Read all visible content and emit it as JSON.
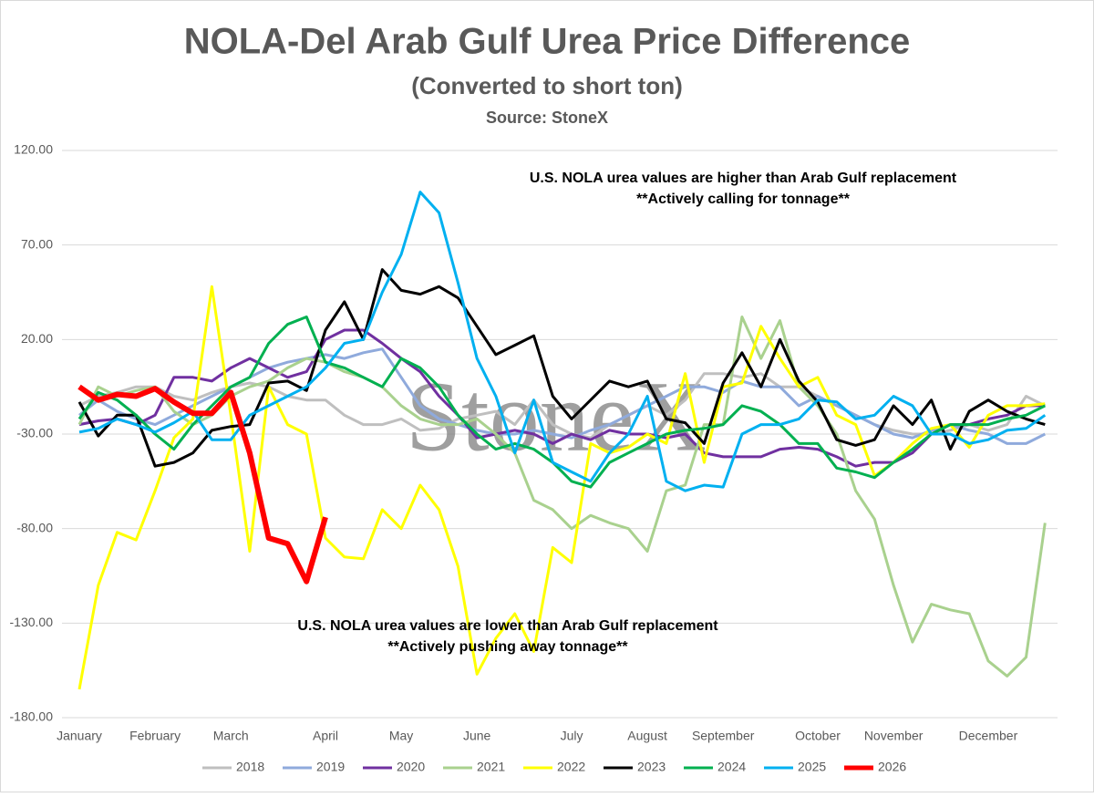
{
  "chart_data": {
    "type": "line",
    "title": "NOLA-Del Arab Gulf Urea Price Difference",
    "subtitle": "(Converted to short ton)",
    "source": "Source: StoneX",
    "watermark": "StoneX",
    "annotations": [
      "U.S. NOLA urea values are higher than Arab Gulf replacement",
      "**Actively calling for tonnage**",
      "U.S. NOLA urea values are lower than Arab Gulf replacement",
      "**Actively pushing away tonnage**"
    ],
    "categories": [
      "January",
      null,
      null,
      null,
      "February",
      null,
      null,
      null,
      "March",
      null,
      null,
      null,
      null,
      "April",
      null,
      null,
      null,
      "May",
      null,
      null,
      null,
      "June",
      null,
      null,
      null,
      null,
      "July",
      null,
      null,
      null,
      "August",
      null,
      null,
      null,
      "September",
      null,
      null,
      null,
      null,
      "October",
      null,
      null,
      null,
      "November",
      null,
      null,
      null,
      null,
      "December",
      null,
      null,
      null
    ],
    "ylim": [
      -180,
      120
    ],
    "yticks": [
      {
        "value": -180,
        "label": "-180.00"
      },
      {
        "value": -130,
        "label": "-130.00"
      },
      {
        "value": -80,
        "label": "-80.00"
      },
      {
        "value": -30,
        "label": "-30.00"
      },
      {
        "value": 20,
        "label": "20.00"
      },
      {
        "value": 70,
        "label": "70.00"
      },
      {
        "value": 120,
        "label": "120.00"
      }
    ],
    "grid": true,
    "legend": "bottom",
    "series": [
      {
        "name": "2018",
        "color": "#bfbfbf",
        "values": [
          -15,
          -10,
          -8,
          -5,
          -5,
          -10,
          -12,
          -8,
          -5,
          -3,
          -5,
          -10,
          -12,
          -12,
          -20,
          -25,
          -25,
          -22,
          -28,
          -27,
          -22,
          -20,
          -18,
          -25,
          -12,
          -25,
          -30,
          -32,
          -25,
          -20,
          -15,
          -20,
          -12,
          2,
          2,
          0,
          2,
          -5,
          -5,
          -10,
          -15,
          -20,
          -25,
          -28,
          -30,
          -30,
          -28,
          -25,
          -28,
          -25,
          -10,
          -15
        ]
      },
      {
        "name": "2019",
        "color": "#8faadc",
        "values": [
          -20,
          -12,
          -18,
          -22,
          -25,
          -20,
          -15,
          -10,
          -5,
          0,
          5,
          8,
          10,
          12,
          10,
          13,
          15,
          0,
          -15,
          -22,
          -25,
          -28,
          -30,
          -30,
          -28,
          -30,
          -32,
          -28,
          -25,
          -20,
          -15,
          -10,
          -5,
          -5,
          -8,
          -2,
          -5,
          -5,
          -15,
          -10,
          -15,
          -20,
          -25,
          -30,
          -32,
          -28,
          -25,
          -28,
          -30,
          -35,
          -35,
          -30
        ]
      },
      {
        "name": "2020",
        "color": "#7030a0",
        "values": [
          -25,
          -23,
          -22,
          -25,
          -20,
          0,
          0,
          -2,
          5,
          10,
          5,
          0,
          3,
          20,
          25,
          25,
          18,
          10,
          3,
          -10,
          -20,
          -32,
          -30,
          -28,
          -30,
          -35,
          -30,
          -33,
          -28,
          -30,
          -30,
          -32,
          -30,
          -40,
          -42,
          -42,
          -42,
          -38,
          -37,
          -38,
          -42,
          -47,
          -45,
          -45,
          -40,
          -30,
          -25,
          -25,
          -22,
          -20,
          -15,
          -15
        ]
      },
      {
        "name": "2021",
        "color": "#a9d18e",
        "values": [
          -25,
          -5,
          -10,
          -7,
          -5,
          -18,
          -25,
          -20,
          -10,
          -5,
          -2,
          5,
          10,
          8,
          3,
          0,
          -5,
          -15,
          -22,
          -25,
          -25,
          -22,
          -30,
          -40,
          -65,
          -70,
          -80,
          -73,
          -77,
          -80,
          -92,
          -60,
          -57,
          -25,
          -25,
          32,
          10,
          30,
          -5,
          -15,
          -30,
          -60,
          -75,
          -110,
          -140,
          -120,
          -123,
          -125,
          -150,
          -158,
          -148,
          -77
        ]
      },
      {
        "name": "2022",
        "color": "#ffff00",
        "values": [
          -165,
          -110,
          -82,
          -86,
          -60,
          -32,
          -22,
          48,
          -20,
          -92,
          -5,
          -25,
          -30,
          -85,
          -95,
          -96,
          -70,
          -80,
          -57,
          -70,
          -100,
          -157,
          -138,
          -125,
          -145,
          -90,
          -98,
          -35,
          -40,
          -37,
          -30,
          -35,
          2,
          -45,
          -5,
          -3,
          27,
          10,
          -5,
          0,
          -20,
          -25,
          -52,
          -45,
          -35,
          -27,
          -25,
          -37,
          -20,
          -15,
          -15,
          -14
        ]
      },
      {
        "name": "2023",
        "color": "#000000",
        "values": [
          -13,
          -31,
          -20,
          -20,
          -47,
          -45,
          -40,
          -28,
          -26,
          -25,
          -3,
          -2,
          -7,
          25,
          40,
          20,
          57,
          46,
          44,
          48,
          42,
          27,
          12,
          17,
          22,
          -10,
          -22,
          -12,
          -2,
          -5,
          -2,
          -22,
          -24,
          -35,
          -3,
          13,
          -5,
          20,
          -2,
          -13,
          -33,
          -36,
          -33,
          -15,
          -25,
          -12,
          -38,
          -18,
          -12,
          -18,
          -22,
          -25
        ]
      },
      {
        "name": "2024",
        "color": "#00b050",
        "values": [
          -22,
          -8,
          -12,
          -20,
          -30,
          -38,
          -25,
          -15,
          -5,
          0,
          18,
          28,
          32,
          8,
          5,
          0,
          -5,
          10,
          5,
          -5,
          -20,
          -30,
          -38,
          -35,
          -38,
          -45,
          -55,
          -58,
          -45,
          -40,
          -35,
          -30,
          -28,
          -27,
          -25,
          -15,
          -18,
          -25,
          -35,
          -35,
          -48,
          -50,
          -53,
          -45,
          -38,
          -30,
          -25,
          -25,
          -25,
          -22,
          -20,
          -15
        ]
      },
      {
        "name": "2025",
        "color": "#00b0f0",
        "values": [
          -29,
          -27,
          -22,
          -25,
          -29,
          -24,
          -18,
          -33,
          -33,
          -20,
          -15,
          -10,
          -5,
          5,
          18,
          20,
          45,
          65,
          98,
          87,
          50,
          10,
          -10,
          -40,
          -12,
          -45,
          -50,
          -55,
          -40,
          -30,
          -10,
          -55,
          -60,
          -57,
          -58,
          -30,
          -25,
          -25,
          -22,
          -12,
          -13,
          -22,
          -20,
          -10,
          -15,
          -30,
          -30,
          -35,
          -33,
          -28,
          -27,
          -20
        ]
      },
      {
        "name": "2026",
        "color": "#ff0000",
        "values": [
          -5,
          -12,
          -9,
          -10,
          -6,
          -13,
          -19,
          -19,
          -8,
          -40,
          -85,
          -88,
          -108,
          -74,
          null,
          null,
          null,
          null,
          null,
          null,
          null,
          null,
          null,
          null,
          null,
          null,
          null,
          null,
          null,
          null,
          null,
          null,
          null,
          null,
          null,
          null,
          null,
          null,
          null,
          null,
          null,
          null,
          null,
          null,
          null,
          null,
          null,
          null,
          null,
          null,
          null,
          null
        ]
      }
    ]
  }
}
